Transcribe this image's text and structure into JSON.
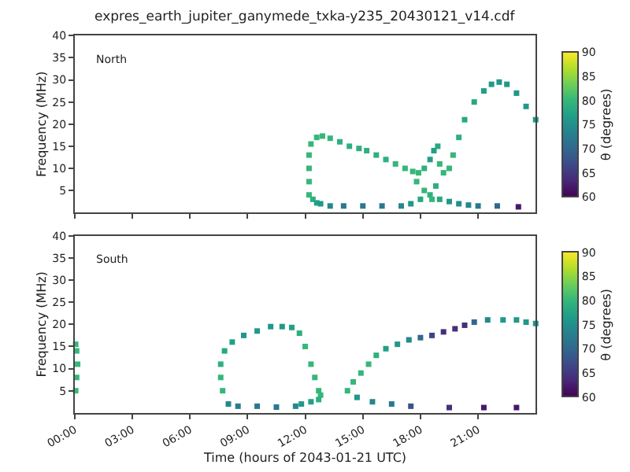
{
  "chart_data": [
    {
      "type": "scatter",
      "title": "expres_earth_jupiter_ganymede_txka-y235_20430121_v14.cdf",
      "ylabel": "Frequency (MHz)",
      "clabel": "θ (degrees)",
      "annotations": [
        "North"
      ],
      "x": [
        12.2,
        12.2,
        12.2,
        12.2,
        12.3,
        12.6,
        12.9,
        13.3,
        13.8,
        14.3,
        14.8,
        15.2,
        15.7,
        16.2,
        16.7,
        17.2,
        17.6,
        17.9,
        18.2,
        18.5,
        18.7,
        18.9,
        19.0,
        19.2,
        19.5,
        19.7,
        20.0,
        20.3,
        20.8,
        21.3,
        21.7,
        22.1,
        22.5,
        23.0,
        23.5,
        24.0,
        12.4,
        12.6,
        12.8,
        13.3,
        14.0,
        15.0,
        16.0,
        17.0,
        17.5,
        18.0,
        18.5,
        19.0,
        19.5,
        20.0,
        20.5,
        21.0,
        22.0,
        23.1,
        17.8,
        18.2,
        18.6,
        18.8
      ],
      "values": [
        4,
        7,
        10,
        13,
        15.5,
        17,
        17.3,
        16.8,
        16,
        15,
        14.5,
        14,
        13,
        12,
        11,
        10,
        9.3,
        9,
        10,
        12,
        14,
        15,
        11,
        9,
        10,
        13,
        17,
        21,
        25,
        27.5,
        29,
        29.5,
        29,
        27,
        24,
        21,
        3,
        2.2,
        2,
        1.5,
        1.5,
        1.5,
        1.5,
        1.5,
        2,
        3,
        4,
        3,
        2.5,
        2,
        1.7,
        1.5,
        1.5,
        1.3,
        7,
        5,
        3,
        6
      ],
      "cvalues": [
        80,
        80,
        80,
        80,
        80,
        80,
        80,
        80,
        79,
        79,
        79,
        79,
        79,
        79,
        80,
        80,
        80,
        80,
        79,
        77,
        77,
        78,
        80,
        80,
        80,
        80,
        79,
        78,
        78,
        77,
        76,
        76,
        76,
        76,
        76,
        76,
        79,
        77,
        76,
        74,
        72,
        72,
        72,
        74,
        76,
        78,
        79,
        78,
        76,
        75,
        74,
        72,
        70,
        62,
        80,
        80,
        80,
        79
      ],
      "xlim": [
        0,
        24
      ],
      "ylim": [
        0,
        40
      ],
      "xticks": [
        {
          "value": 0,
          "label": null
        },
        {
          "value": 3,
          "label": null
        },
        {
          "value": 6,
          "label": null
        },
        {
          "value": 9,
          "label": null
        },
        {
          "value": 12,
          "label": null
        },
        {
          "value": 15,
          "label": null
        },
        {
          "value": 18,
          "label": null
        },
        {
          "value": 21,
          "label": null
        }
      ],
      "yticks": [
        5,
        10,
        15,
        20,
        25,
        30,
        35,
        40
      ],
      "tick_labels": "y",
      "clim": [
        60,
        90
      ],
      "cticks": [
        60,
        65,
        70,
        75,
        80,
        85,
        90
      ],
      "marker": "square"
    },
    {
      "type": "scatter",
      "xlabel": "Time (hours of 2043-01-21 UTC)",
      "ylabel": "Frequency (MHz)",
      "clabel": "θ (degrees)",
      "annotations": [
        "South"
      ],
      "x": [
        0.05,
        0.1,
        0.15,
        0.1,
        0.05,
        7.7,
        7.6,
        7.6,
        7.8,
        8.2,
        8.8,
        9.5,
        10.2,
        10.8,
        11.3,
        11.7,
        12.0,
        12.3,
        12.5,
        12.7,
        12.8,
        12.7,
        12.3,
        11.8,
        8.0,
        8.5,
        9.5,
        10.5,
        11.5,
        14.2,
        14.5,
        14.9,
        15.3,
        15.7,
        16.2,
        16.8,
        17.4,
        18.0,
        18.6,
        19.2,
        19.8,
        20.3,
        20.8,
        21.5,
        22.3,
        23.0,
        23.5,
        24.0,
        14.7,
        15.5,
        16.5,
        17.5,
        19.5,
        21.3,
        23.0
      ],
      "values": [
        5,
        8,
        11,
        14,
        15.5,
        5,
        8,
        11,
        14,
        16,
        17.5,
        18.5,
        19.5,
        19.5,
        19.3,
        18,
        15,
        11,
        8,
        5,
        4,
        3,
        2.5,
        2,
        2,
        1.5,
        1.5,
        1.3,
        1.5,
        5,
        7,
        9,
        11,
        13,
        14.5,
        15.5,
        16.5,
        17,
        17.5,
        18.3,
        19,
        19.8,
        20.5,
        21,
        21,
        21,
        20.5,
        20.2,
        3.5,
        2.5,
        2,
        1.5,
        1.2,
        1.2,
        1.2
      ],
      "cvalues": [
        80,
        80,
        80,
        80,
        80,
        80,
        80,
        79,
        78,
        77,
        76,
        76,
        76,
        76,
        77,
        79,
        80,
        80,
        80,
        80,
        80,
        79,
        77,
        76,
        74,
        73,
        72,
        72,
        74,
        80,
        80,
        80,
        80,
        79,
        77,
        76,
        74,
        70,
        66,
        64,
        64,
        64,
        70,
        74,
        76,
        76,
        76,
        76,
        76,
        74,
        72,
        68,
        64,
        62,
        62
      ],
      "xlim": [
        0,
        24
      ],
      "ylim": [
        0,
        40
      ],
      "xticks": [
        {
          "value": 0,
          "label": "00:00"
        },
        {
          "value": 3,
          "label": "03:00"
        },
        {
          "value": 6,
          "label": "06:00"
        },
        {
          "value": 9,
          "label": "09:00"
        },
        {
          "value": 12,
          "label": "12:00"
        },
        {
          "value": 15,
          "label": "15:00"
        },
        {
          "value": 18,
          "label": "18:00"
        },
        {
          "value": 21,
          "label": "21:00"
        }
      ],
      "yticks": [
        5,
        10,
        15,
        20,
        25,
        30,
        35,
        40
      ],
      "clim": [
        60,
        90
      ],
      "cticks": [
        60,
        65,
        70,
        75,
        80,
        85,
        90
      ],
      "marker": "square"
    }
  ]
}
